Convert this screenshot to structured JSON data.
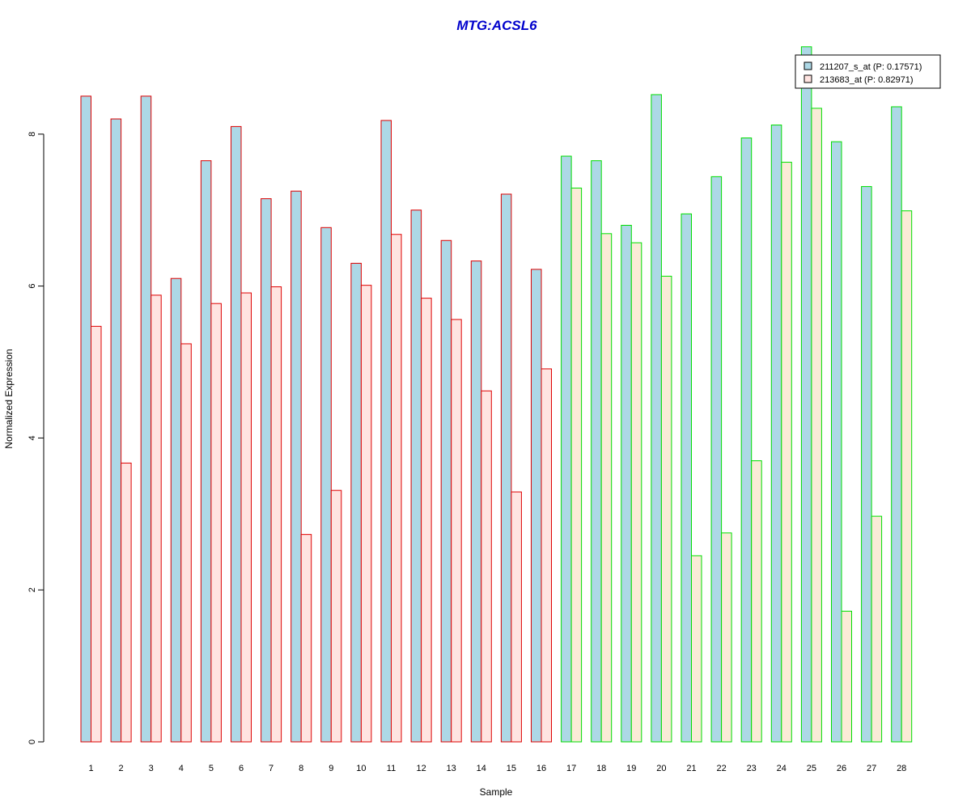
{
  "chart_data": {
    "type": "bar",
    "title": "MTG:ACSL6",
    "title_color": "#0000CC",
    "xlabel": "Sample",
    "ylabel": "Normalized Expression",
    "ylim": [
      0,
      9.2
    ],
    "yticks": [
      0,
      2,
      4,
      6,
      8
    ],
    "grid": false,
    "legend_position": "top-right",
    "categories": [
      "1",
      "2",
      "3",
      "4",
      "5",
      "6",
      "7",
      "8",
      "9",
      "10",
      "11",
      "12",
      "13",
      "14",
      "15",
      "16",
      "17",
      "18",
      "19",
      "20",
      "21",
      "22",
      "23",
      "24",
      "25",
      "26",
      "27",
      "28"
    ],
    "group_border_colors": {
      "1-16": "#DD0000",
      "17-28": "#00DD00"
    },
    "series": [
      {
        "name": "211207_s_at (P: 0.17571)",
        "fill": "#ADD8E6",
        "values": [
          8.5,
          8.2,
          8.5,
          6.1,
          7.65,
          8.1,
          7.15,
          7.25,
          6.77,
          6.3,
          8.18,
          7.0,
          6.6,
          6.33,
          7.21,
          6.22,
          7.71,
          7.65,
          6.8,
          8.52,
          6.95,
          7.44,
          7.95,
          8.12,
          9.15,
          7.9,
          7.31,
          8.36
        ]
      },
      {
        "name": "213683_at (P: 0.82971)",
        "fill_by_group": {
          "1-16": "#FFE4E1",
          "17-28": "#FAEBD7"
        },
        "legend_fill": "#FFE4E1",
        "values": [
          5.47,
          3.67,
          5.88,
          5.24,
          5.77,
          5.91,
          5.99,
          2.73,
          3.31,
          6.01,
          6.68,
          5.84,
          5.56,
          4.62,
          3.29,
          4.91,
          7.29,
          6.69,
          6.57,
          6.13,
          2.45,
          2.75,
          3.7,
          7.63,
          8.34,
          1.72,
          2.97,
          6.99
        ]
      }
    ]
  }
}
